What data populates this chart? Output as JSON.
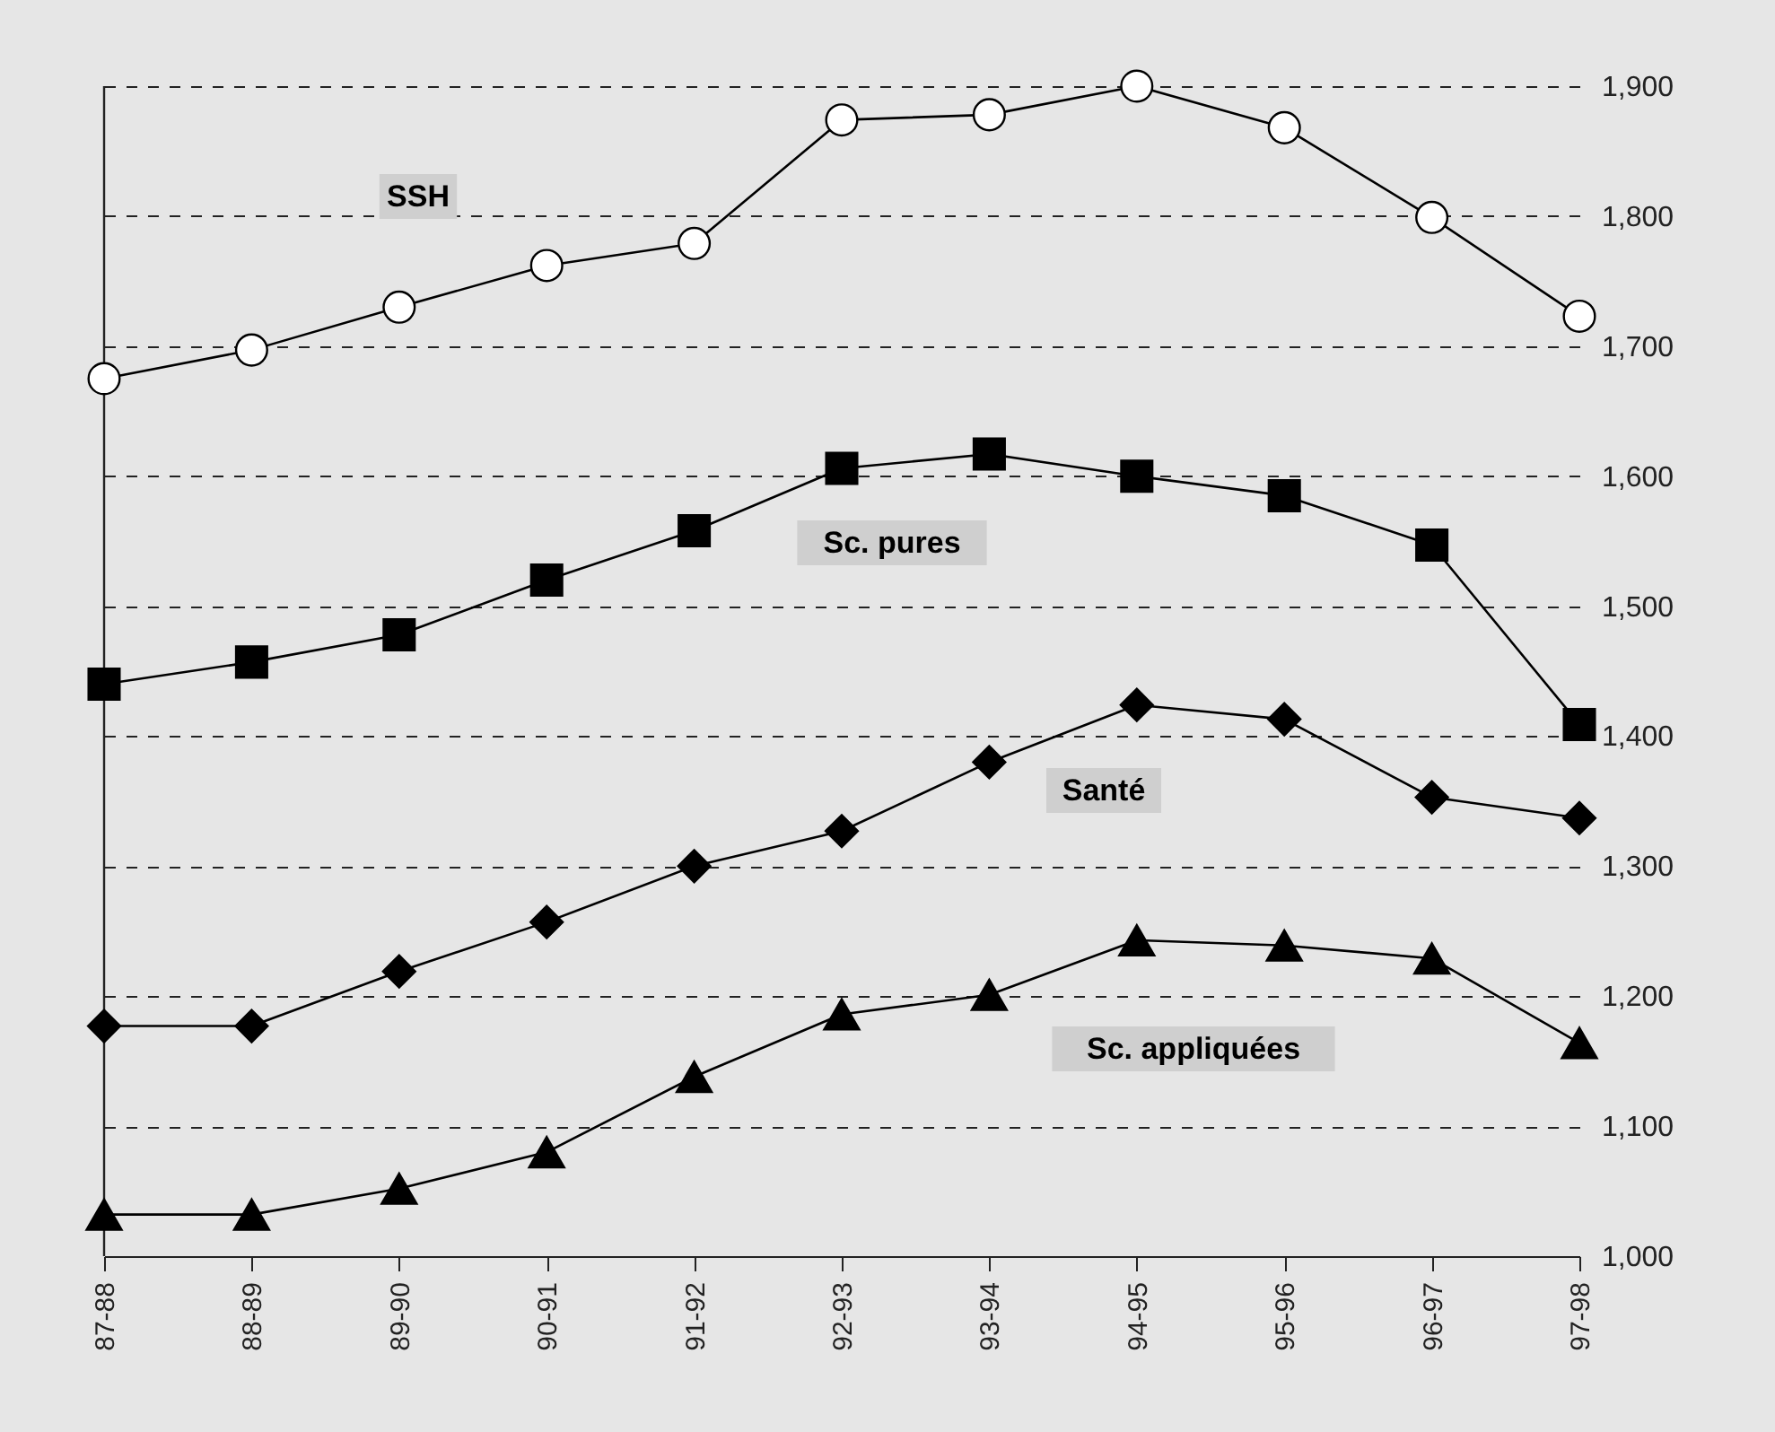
{
  "chart_data": {
    "type": "line",
    "categories": [
      "87-88",
      "88-89",
      "89-90",
      "90-91",
      "91-92",
      "92-93",
      "93-94",
      "94-95",
      "95-96",
      "96-97",
      "97-98"
    ],
    "series": [
      {
        "name": "SSH",
        "color": "#000000",
        "marker": "circle",
        "values": [
          1675,
          1697,
          1730,
          1762,
          1779,
          1874,
          1878,
          1900,
          1868,
          1799,
          1723
        ]
      },
      {
        "name": "Sc. pures",
        "color": "#000000",
        "marker": "square",
        "values": [
          1440,
          1457,
          1478,
          1520,
          1558,
          1606,
          1617,
          1600,
          1585,
          1547,
          1409
        ]
      },
      {
        "name": "Santé",
        "color": "#000000",
        "marker": "diamond",
        "values": [
          1177,
          1177,
          1219,
          1257,
          1300,
          1327,
          1380,
          1424,
          1413,
          1353,
          1337
        ]
      },
      {
        "name": "Sc. appliquées",
        "color": "#000000",
        "marker": "triangle",
        "values": [
          1032,
          1032,
          1052,
          1080,
          1138,
          1186,
          1201,
          1243,
          1239,
          1229,
          1164
        ]
      }
    ],
    "ylim": [
      1000,
      1900
    ],
    "yticks": [
      {
        "value": 1000,
        "label": "1,000"
      },
      {
        "value": 1100,
        "label": "1,100"
      },
      {
        "value": 1200,
        "label": "1,200"
      },
      {
        "value": 1300,
        "label": "1,300"
      },
      {
        "value": 1400,
        "label": "1,400"
      },
      {
        "value": 1500,
        "label": "1,500"
      },
      {
        "value": 1600,
        "label": "1,600"
      },
      {
        "value": 1700,
        "label": "1,700"
      },
      {
        "value": 1800,
        "label": "1,800"
      },
      {
        "value": 1900,
        "label": "1,900"
      }
    ],
    "grid": "y",
    "line_style": "solid"
  }
}
